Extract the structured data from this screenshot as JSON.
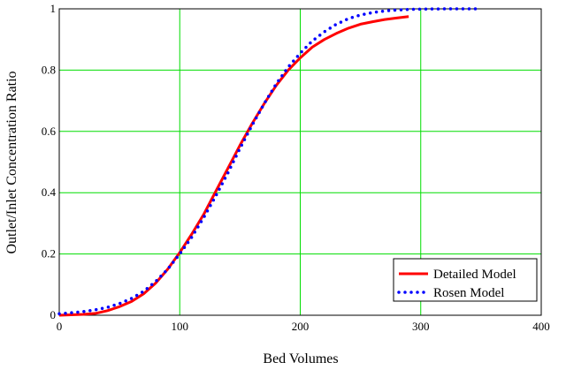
{
  "chart_data": {
    "type": "line",
    "title": "",
    "xlabel": "Bed Volumes",
    "ylabel": "Outlet/Inlet Concentration Ratio",
    "xlim": [
      0,
      400
    ],
    "ylim": [
      0,
      1
    ],
    "xticks": [
      0,
      100,
      200,
      300,
      400
    ],
    "yticks": [
      0,
      0.2,
      0.4,
      0.6,
      0.8,
      1
    ],
    "ytick_labels": [
      "0",
      "0.2",
      "0.4",
      "0.6",
      "0.8",
      "1"
    ],
    "grid": true,
    "grid_color": "#00dd00",
    "legend_position": "bottom-right",
    "series": [
      {
        "name": "Detailed Model",
        "color": "#ff0000",
        "style": "solid",
        "x": [
          0,
          20,
          30,
          40,
          50,
          60,
          70,
          80,
          90,
          100,
          110,
          120,
          130,
          140,
          150,
          160,
          170,
          180,
          190,
          200,
          210,
          220,
          230,
          240,
          250,
          260,
          270,
          280,
          290
        ],
        "y": [
          0.0,
          0.003,
          0.006,
          0.015,
          0.028,
          0.045,
          0.07,
          0.105,
          0.15,
          0.205,
          0.265,
          0.33,
          0.405,
          0.48,
          0.555,
          0.625,
          0.69,
          0.75,
          0.8,
          0.84,
          0.875,
          0.9,
          0.92,
          0.937,
          0.95,
          0.958,
          0.965,
          0.97,
          0.975
        ]
      },
      {
        "name": "Rosen Model",
        "color": "#0000ff",
        "style": "dotted",
        "x": [
          0,
          10,
          20,
          30,
          40,
          50,
          60,
          70,
          80,
          90,
          100,
          110,
          120,
          130,
          140,
          150,
          160,
          170,
          180,
          190,
          200,
          210,
          220,
          230,
          240,
          250,
          260,
          270,
          280,
          290,
          300,
          320,
          350
        ],
        "y": [
          0.005,
          0.008,
          0.012,
          0.018,
          0.026,
          0.038,
          0.055,
          0.078,
          0.11,
          0.15,
          0.2,
          0.255,
          0.32,
          0.39,
          0.465,
          0.545,
          0.62,
          0.69,
          0.755,
          0.81,
          0.855,
          0.895,
          0.925,
          0.95,
          0.968,
          0.98,
          0.988,
          0.993,
          0.996,
          0.998,
          0.999,
          1.0,
          1.0
        ]
      }
    ]
  }
}
